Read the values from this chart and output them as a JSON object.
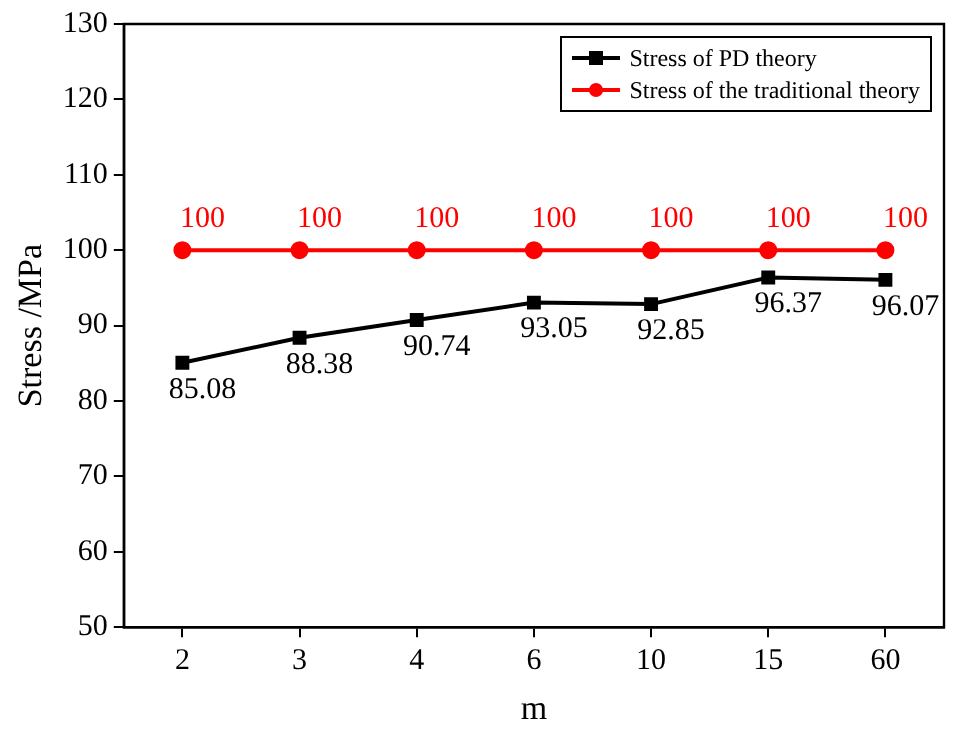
{
  "chart_data": {
    "type": "line",
    "xlabel": "m",
    "ylabel": "Stress /MPa",
    "categories": [
      "2",
      "3",
      "4",
      "6",
      "10",
      "15",
      "60"
    ],
    "series": [
      {
        "name": "Stress of PD theory",
        "color": "#000000",
        "marker": "square",
        "values": [
          85.08,
          88.38,
          90.74,
          93.05,
          92.85,
          96.37,
          96.07
        ]
      },
      {
        "name": "Stress of the traditional theory",
        "color": "#ff0000",
        "marker": "circle",
        "values": [
          100,
          100,
          100,
          100,
          100,
          100,
          100
        ]
      }
    ],
    "ylim": [
      50,
      130
    ],
    "yticks": [
      50,
      60,
      70,
      80,
      90,
      100,
      110,
      120,
      130
    ],
    "grid": false,
    "legend": "top right",
    "data_labels": true,
    "line_style": "solid"
  }
}
